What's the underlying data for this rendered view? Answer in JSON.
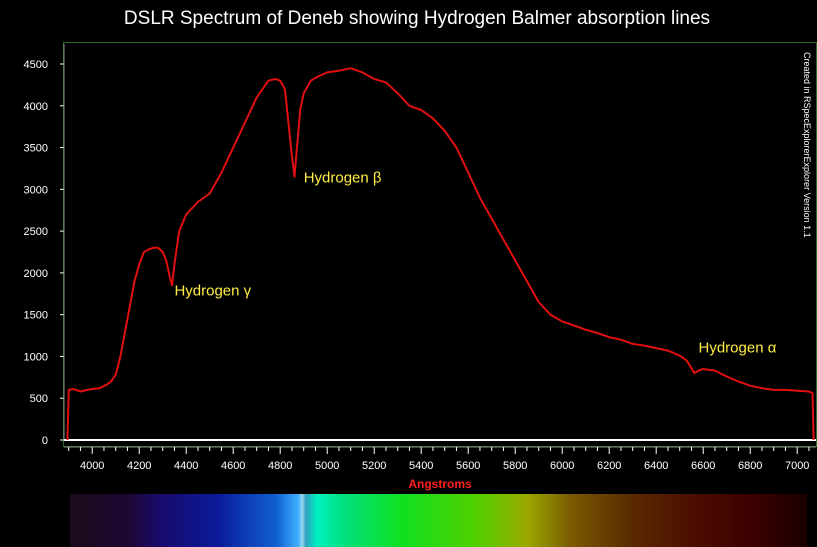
{
  "chart_data": {
    "type": "line",
    "title": "DSLR Spectrum of Deneb showing Hydrogen Balmer absorption lines",
    "xlabel": "Angstroms",
    "ylabel": "",
    "xlim": [
      3880,
      7080
    ],
    "ylim": [
      0,
      4700
    ],
    "xticks": [
      "4000",
      "4200",
      "4400",
      "4600",
      "4800",
      "5000",
      "5200",
      "5400",
      "5600",
      "5800",
      "6000",
      "6200",
      "6400",
      "6600",
      "6800",
      "7000"
    ],
    "yticks": [
      "0",
      "500",
      "1000",
      "1500",
      "2000",
      "2500",
      "3000",
      "3500",
      "4000",
      "4500"
    ],
    "grid": false,
    "credit": "Created in RSpecExplorerExplorer Version 1.1",
    "colors": {
      "series": "#e01010",
      "baseline": "#ffffff",
      "xlabel": "#ff2020",
      "annotation": "#ffee44",
      "frame": "#2a6a2a"
    },
    "annotations": [
      {
        "text": "Hydrogen γ",
        "x": 4350,
        "y": 1730
      },
      {
        "text": "Hydrogen β",
        "x": 4900,
        "y": 3080
      },
      {
        "text": "Hydrogen α",
        "x": 6580,
        "y": 1050
      }
    ],
    "series": [
      {
        "x": [
          3895,
          3900,
          3920,
          3950,
          3980,
          4000,
          4030,
          4060,
          4080,
          4100,
          4120,
          4140,
          4160,
          4180,
          4200,
          4220,
          4240,
          4260,
          4280,
          4300,
          4315,
          4330,
          4340,
          4350,
          4370,
          4400,
          4450,
          4500,
          4550,
          4600,
          4650,
          4700,
          4750,
          4780,
          4800,
          4820,
          4835,
          4850,
          4861,
          4870,
          4885,
          4900,
          4930,
          4960,
          5000,
          5050,
          5100,
          5150,
          5200,
          5250,
          5300,
          5350,
          5400,
          5450,
          5500,
          5550,
          5600,
          5650,
          5700,
          5750,
          5800,
          5850,
          5900,
          5950,
          6000,
          6050,
          6100,
          6150,
          6200,
          6250,
          6300,
          6350,
          6400,
          6450,
          6500,
          6530,
          6550,
          6563,
          6580,
          6600,
          6650,
          6700,
          6750,
          6800,
          6850,
          6900,
          6950,
          7000,
          7050,
          7065,
          7070
        ],
        "y": [
          0,
          600,
          610,
          580,
          600,
          610,
          620,
          660,
          700,
          780,
          1000,
          1300,
          1600,
          1900,
          2100,
          2250,
          2280,
          2300,
          2300,
          2250,
          2150,
          1950,
          1850,
          2100,
          2500,
          2700,
          2850,
          2950,
          3200,
          3500,
          3800,
          4100,
          4300,
          4320,
          4300,
          4200,
          3800,
          3400,
          3150,
          3450,
          3950,
          4150,
          4300,
          4350,
          4400,
          4420,
          4450,
          4400,
          4320,
          4280,
          4150,
          4000,
          3950,
          3850,
          3700,
          3500,
          3200,
          2900,
          2650,
          2400,
          2150,
          1900,
          1650,
          1500,
          1420,
          1370,
          1320,
          1280,
          1230,
          1200,
          1150,
          1130,
          1100,
          1070,
          1010,
          950,
          860,
          800,
          830,
          850,
          830,
          760,
          700,
          650,
          620,
          600,
          600,
          590,
          580,
          560,
          0
        ]
      }
    ]
  }
}
